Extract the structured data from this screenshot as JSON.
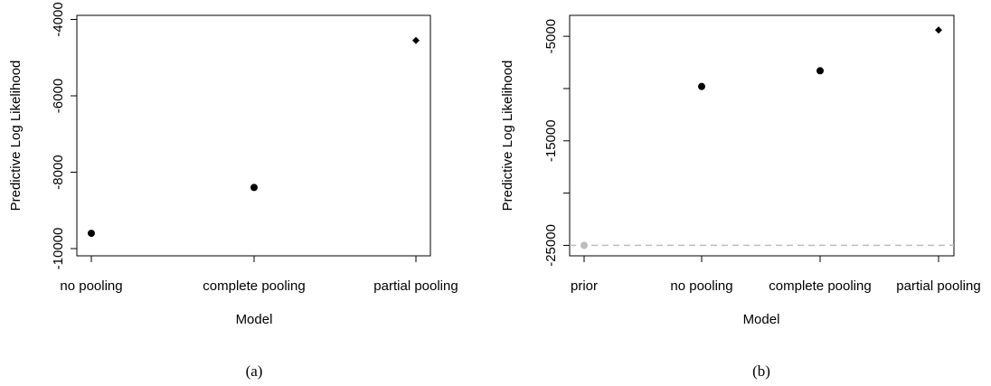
{
  "chart_data": [
    {
      "type": "scatter",
      "caption": "(a)",
      "xlabel": "Model",
      "ylabel": "Predictive Log Likelihood",
      "categories": [
        "no pooling",
        "complete pooling",
        "partial pooling"
      ],
      "values": [
        -9600,
        -8400,
        -4550
      ],
      "markers": [
        "circle",
        "circle",
        "diamond"
      ],
      "ylim": [
        -10000,
        -4000
      ],
      "yticks": [
        -10000,
        -8000,
        -6000,
        -4000
      ],
      "ytick_labels": [
        "-10000",
        "-8000",
        "-6000",
        "-4000"
      ],
      "grid": false
    },
    {
      "type": "scatter",
      "caption": "(b)",
      "xlabel": "Model",
      "ylabel": "Predictive Log Likelihood",
      "categories": [
        "prior",
        "no pooling",
        "complete pooling",
        "partial pooling"
      ],
      "values": [
        -25000,
        -9800,
        -8300,
        -4400
      ],
      "markers": [
        "circle",
        "circle",
        "circle",
        "diamond"
      ],
      "point_colors": [
        "#bdbdbd",
        "#000000",
        "#000000",
        "#000000"
      ],
      "reference_line": {
        "y": -25000,
        "color": "#bdbdbd",
        "style": "dashed"
      },
      "ylim": [
        -26000,
        -3000
      ],
      "yticks": [
        -25000,
        -15000,
        -5000
      ],
      "ytick_labels": [
        "-25000",
        "-15000",
        "-5000"
      ],
      "minor_yticks": [
        -20000,
        -10000
      ],
      "grid": false
    }
  ]
}
